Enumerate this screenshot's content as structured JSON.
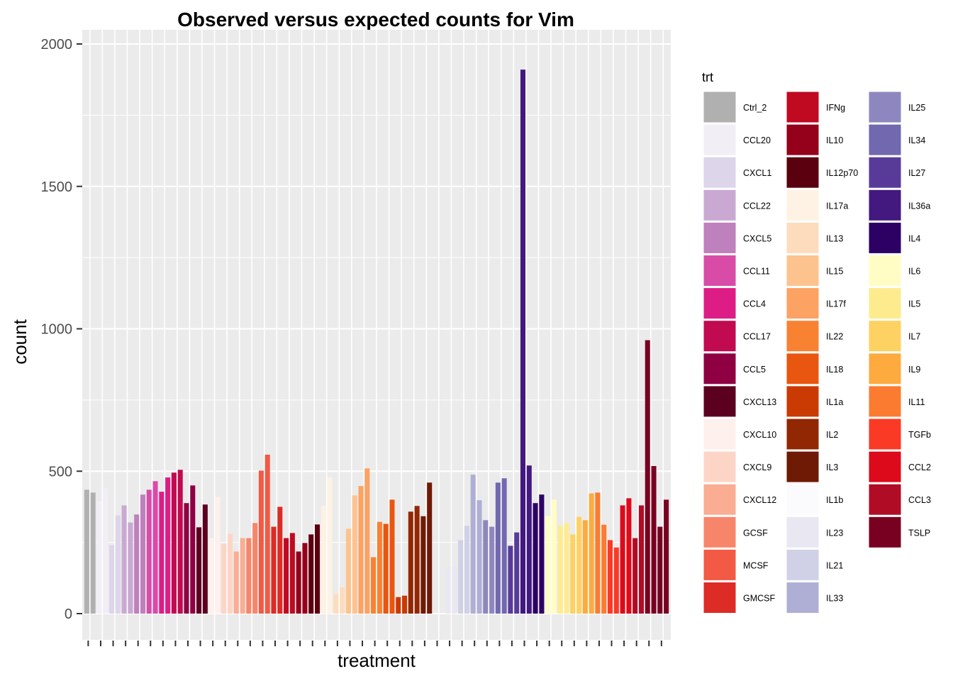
{
  "chart_data": {
    "type": "bar",
    "title": "Observed versus expected counts for Vim",
    "xlabel": "treatment",
    "ylabel": "count",
    "ylim": [
      0,
      2000
    ],
    "yticks": [
      0,
      500,
      1000,
      1500,
      2000
    ],
    "x_tick_labels": "none",
    "grid": true,
    "legend": {
      "title": "trt",
      "placement": "right",
      "columns": 3
    },
    "treatments": [
      {
        "name": "Ctrl_2",
        "color": "#B0B0B0",
        "values": [
          435,
          425
        ]
      },
      {
        "name": "CCL20",
        "color": "#F2EEF6",
        "values": [
          395,
          440
        ]
      },
      {
        "name": "CXCL1",
        "color": "#DDD5EA",
        "values": [
          240,
          345
        ]
      },
      {
        "name": "CCL22",
        "color": "#C9A9D2",
        "values": [
          380,
          320
        ]
      },
      {
        "name": "CXCL5",
        "color": "#BF80BE",
        "values": [
          348,
          418
        ]
      },
      {
        "name": "CCL11",
        "color": "#D84CA8",
        "values": [
          435,
          465
        ]
      },
      {
        "name": "CCL4",
        "color": "#DD1D85",
        "values": [
          428,
          478
        ]
      },
      {
        "name": "CCL17",
        "color": "#C20A50",
        "values": [
          495,
          505
        ]
      },
      {
        "name": "CCL5",
        "color": "#8E0042",
        "values": [
          388,
          450
        ]
      },
      {
        "name": "CXCL13",
        "color": "#5C0020",
        "values": [
          303,
          383
        ]
      },
      {
        "name": "CXCL10",
        "color": "#FEF0EC",
        "values": [
          265,
          410
        ]
      },
      {
        "name": "CXCL9",
        "color": "#FDD5C6",
        "values": [
          245,
          280
        ]
      },
      {
        "name": "CXCL12",
        "color": "#FAAD93",
        "values": [
          218,
          265
        ]
      },
      {
        "name": "GCSF",
        "color": "#F7856A",
        "values": [
          265,
          318
        ]
      },
      {
        "name": "MCSF",
        "color": "#F25A45",
        "values": [
          502,
          558
        ]
      },
      {
        "name": "GMCSF",
        "color": "#DD2B25",
        "values": [
          305,
          375
        ]
      },
      {
        "name": "IFNg",
        "color": "#C00A22",
        "values": [
          265,
          283
        ]
      },
      {
        "name": "IL10",
        "color": "#95001A",
        "values": [
          218,
          248
        ]
      },
      {
        "name": "IL12p70",
        "color": "#5A000F",
        "values": [
          278,
          313
        ]
      },
      {
        "name": "IL17a",
        "color": "#FEF2E4",
        "values": [
          378,
          478
        ]
      },
      {
        "name": "IL13",
        "color": "#FDDCBE",
        "values": [
          68,
          92
        ]
      },
      {
        "name": "IL15",
        "color": "#FDC38F",
        "values": [
          298,
          415
        ]
      },
      {
        "name": "IL17f",
        "color": "#FCA262",
        "values": [
          448,
          510
        ]
      },
      {
        "name": "IL22",
        "color": "#F98132",
        "values": [
          198,
          322
        ]
      },
      {
        "name": "IL18",
        "color": "#E9560F",
        "values": [
          315,
          400
        ]
      },
      {
        "name": "IL1a",
        "color": "#CA3A03",
        "values": [
          58,
          63
        ]
      },
      {
        "name": "IL2",
        "color": "#922803",
        "values": [
          358,
          378
        ]
      },
      {
        "name": "IL3",
        "color": "#6E1A05",
        "values": [
          342,
          460
        ]
      },
      {
        "name": "IL1b",
        "color": "#FBFBFD",
        "values": [
          0,
          0
        ]
      },
      {
        "name": "IL23",
        "color": "#E9E7F1",
        "values": [
          162,
          165
        ]
      },
      {
        "name": "IL21",
        "color": "#D0D0E6",
        "values": [
          258,
          308
        ]
      },
      {
        "name": "IL33",
        "color": "#AFAFD5",
        "values": [
          488,
          398
        ]
      },
      {
        "name": "IL25",
        "color": "#8E87BF",
        "values": [
          328,
          305
        ]
      },
      {
        "name": "IL34",
        "color": "#7268AF",
        "values": [
          460,
          475
        ]
      },
      {
        "name": "IL27",
        "color": "#583B98",
        "values": [
          238,
          285
        ]
      },
      {
        "name": "IL36a",
        "color": "#43197F",
        "values": [
          1910,
          520
        ]
      },
      {
        "name": "IL4",
        "color": "#2D0064",
        "values": [
          388,
          418
        ]
      },
      {
        "name": "IL6",
        "color": "#FFFDC4",
        "values": [
          342,
          400
        ]
      },
      {
        "name": "IL5",
        "color": "#FEEB8E",
        "values": [
          308,
          318
        ]
      },
      {
        "name": "IL7",
        "color": "#FED262",
        "values": [
          278,
          340
        ]
      },
      {
        "name": "IL9",
        "color": "#FDAB3F",
        "values": [
          328,
          422
        ]
      },
      {
        "name": "IL11",
        "color": "#FB7B30",
        "values": [
          425,
          312
        ]
      },
      {
        "name": "TGFb",
        "color": "#FA3A25",
        "values": [
          258,
          232
        ]
      },
      {
        "name": "CCL2",
        "color": "#DC0A1B",
        "values": [
          380,
          405
        ]
      },
      {
        "name": "CCL3",
        "color": "#B00C25",
        "values": [
          265,
          380
        ]
      },
      {
        "name": "TSLP",
        "color": "#780021",
        "values": [
          960,
          518
        ]
      }
    ],
    "overflow_bars": [
      {
        "treatment": "TSLP",
        "values": [
          305,
          400
        ]
      }
    ]
  }
}
